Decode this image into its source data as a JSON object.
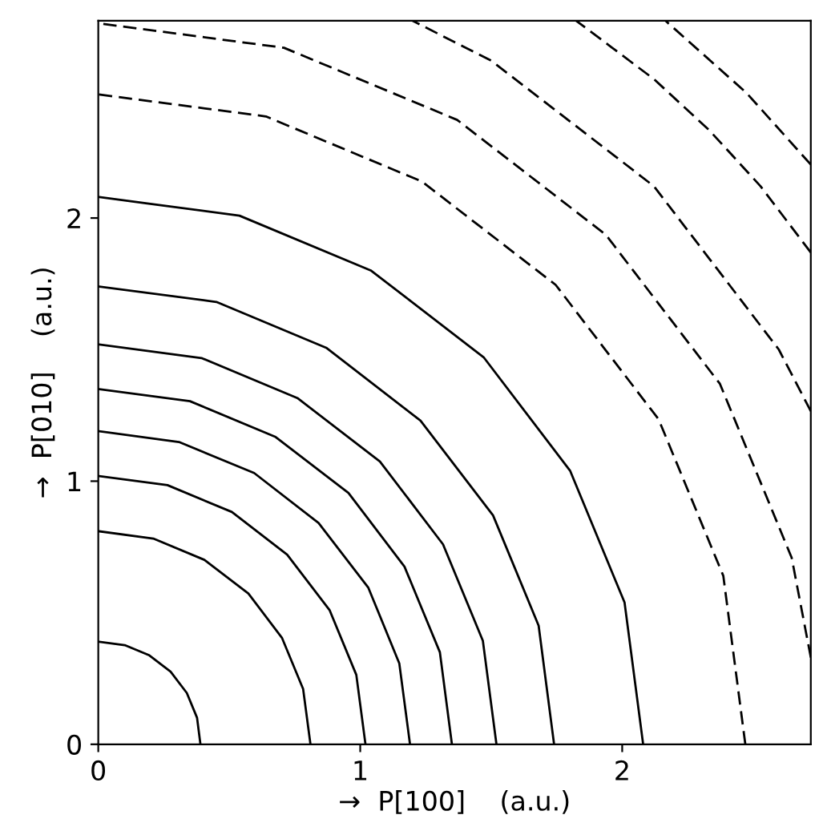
{
  "chart_data": {
    "type": "line",
    "xlabel": "→  P[100]    (a.u.)",
    "ylabel": "→  P[010]    (a.u.)",
    "xlim": [
      0,
      2.72
    ],
    "ylim": [
      0,
      2.75
    ],
    "xticks": [
      0,
      1,
      2
    ],
    "yticks": [
      0,
      1,
      2
    ],
    "grid": false,
    "legend": false,
    "marker": "none",
    "series": [
      {
        "color": "#000000",
        "line_style": "solid",
        "x": [
          0.39,
          0.377,
          0.338,
          0.276,
          0.195,
          0.101,
          0
        ],
        "values": [
          0,
          0.101,
          0.195,
          0.276,
          0.338,
          0.377,
          0.39
        ]
      },
      {
        "color": "#000000",
        "line_style": "solid",
        "x": [
          0.81,
          0.782,
          0.701,
          0.573,
          0.405,
          0.21,
          0
        ],
        "values": [
          0,
          0.21,
          0.405,
          0.573,
          0.701,
          0.782,
          0.81
        ]
      },
      {
        "color": "#000000",
        "line_style": "solid",
        "x": [
          1.02,
          0.985,
          0.883,
          0.721,
          0.51,
          0.264,
          0
        ],
        "values": [
          0,
          0.264,
          0.51,
          0.721,
          0.883,
          0.985,
          1.02
        ]
      },
      {
        "color": "#000000",
        "line_style": "solid",
        "x": [
          1.19,
          1.149,
          1.031,
          0.841,
          0.595,
          0.308,
          0
        ],
        "values": [
          0,
          0.308,
          0.595,
          0.841,
          1.031,
          1.149,
          1.19
        ]
      },
      {
        "color": "#000000",
        "line_style": "solid",
        "x": [
          1.35,
          1.304,
          1.169,
          0.955,
          0.675,
          0.35,
          0
        ],
        "values": [
          0,
          0.35,
          0.675,
          0.955,
          1.169,
          1.304,
          1.35
        ]
      },
      {
        "color": "#000000",
        "line_style": "solid",
        "x": [
          1.52,
          1.468,
          1.316,
          1.075,
          0.76,
          0.394,
          0
        ],
        "values": [
          0,
          0.394,
          0.76,
          1.075,
          1.316,
          1.468,
          1.52
        ]
      },
      {
        "color": "#000000",
        "line_style": "solid",
        "x": [
          1.74,
          1.681,
          1.507,
          1.23,
          0.87,
          0.451,
          0
        ],
        "values": [
          0,
          0.451,
          0.87,
          1.23,
          1.507,
          1.681,
          1.74
        ]
      },
      {
        "color": "#000000",
        "line_style": "solid",
        "x": [
          2.08,
          2.009,
          1.801,
          1.471,
          1.04,
          0.539,
          0
        ],
        "values": [
          0,
          0.539,
          1.04,
          1.471,
          1.801,
          2.009,
          2.08
        ]
      },
      {
        "color": "#000000",
        "line_style": "dashed",
        "x": [
          2.47,
          2.386,
          2.139,
          1.746,
          1.235,
          0.64,
          0
        ],
        "values": [
          0,
          0.64,
          1.235,
          1.746,
          2.139,
          2.386,
          2.47
        ]
      },
      {
        "color": "#000000",
        "line_style": "dashed",
        "x": [
          2.72,
          2.647,
          2.373,
          1.937,
          1.37,
          0.709,
          0
        ],
        "values": [
          0.33,
          0.709,
          1.37,
          1.937,
          2.373,
          2.647,
          2.74
        ]
      },
      {
        "color": "#000000",
        "line_style": "dashed",
        "x": [
          2.72,
          2.598,
          2.121,
          1.5,
          1.199
        ],
        "values": [
          1.266,
          1.5,
          2.121,
          2.598,
          2.75
        ]
      },
      {
        "color": "#000000",
        "line_style": "dashed",
        "x": [
          2.72,
          2.528,
          2.333,
          2.121,
          1.824
        ],
        "values": [
          1.869,
          2.121,
          2.333,
          2.528,
          2.75
        ]
      },
      {
        "color": "#000000",
        "line_style": "dashed",
        "x": [
          2.72,
          2.475,
          2.165
        ],
        "values": [
          2.203,
          2.475,
          2.75
        ]
      }
    ]
  }
}
